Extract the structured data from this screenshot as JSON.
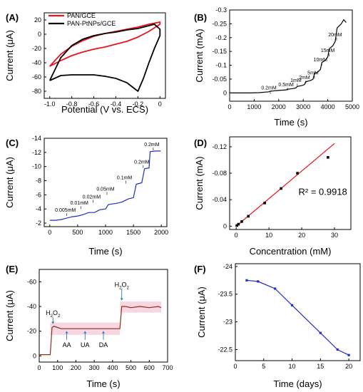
{
  "chart_data": [
    {
      "panel": "(A)",
      "type": "line",
      "xlabel": "Potential (V vs. ECS)",
      "ylabel": "Current (μA)",
      "xlim": [
        -1.05,
        0.05
      ],
      "ylim": [
        -90,
        30
      ],
      "xticks": [
        -1.0,
        -0.8,
        -0.6,
        -0.4,
        -0.2,
        0.0
      ],
      "xtick_labels": [
        "-1.0",
        "-0.8",
        "-0.6",
        "-0.4",
        "-0.2",
        "0"
      ],
      "yticks": [
        -80,
        -60,
        -40,
        -20,
        0,
        20
      ],
      "legend": "top-left",
      "series": [
        {
          "name": "PAN/GCE",
          "color": "#e8141e",
          "x": [
            -1.0,
            -0.9,
            -0.8,
            -0.7,
            -0.6,
            -0.5,
            -0.4,
            -0.3,
            -0.2,
            -0.1,
            0.0,
            0.0,
            -0.1,
            -0.2,
            -0.3,
            -0.4,
            -0.5,
            -0.6,
            -0.7,
            -0.8,
            -0.9,
            -1.0
          ],
          "y": [
            -45,
            -28,
            -17,
            -9,
            -3,
            1,
            4,
            7,
            10,
            14,
            17,
            14,
            4,
            -4,
            -10,
            -14,
            -18,
            -21,
            -25,
            -30,
            -37,
            -45
          ]
        },
        {
          "name": "PAN-PtNPs/GCE",
          "color": "#000000",
          "x": [
            -1.0,
            -0.9,
            -0.8,
            -0.7,
            -0.6,
            -0.5,
            -0.4,
            -0.3,
            -0.2,
            -0.1,
            -0.05,
            0.0,
            0.0,
            -0.05,
            -0.1,
            -0.15,
            -0.2,
            -0.25,
            -0.3,
            -0.4,
            -0.5,
            -0.6,
            -0.7,
            -0.8,
            -0.9,
            -1.0
          ],
          "y": [
            -65,
            -33,
            -16,
            -7,
            -2,
            1,
            3,
            6,
            8,
            12,
            14,
            7,
            -2,
            -20,
            -40,
            -62,
            -80,
            -74,
            -68,
            -62,
            -59,
            -57,
            -57,
            -57,
            -58,
            -65
          ]
        }
      ]
    },
    {
      "panel": "(B)",
      "type": "line",
      "xlabel": "Time (s)",
      "ylabel": "Current (mA)",
      "xlim": [
        0,
        5000
      ],
      "ylim": [
        0.03,
        -0.3
      ],
      "xticks": [
        0,
        1000,
        2000,
        3000,
        4000,
        5000
      ],
      "yticks": [
        0,
        -0.05,
        -0.1,
        -0.15,
        -0.2,
        -0.25,
        -0.3
      ],
      "ytick_labels": [
        "0",
        "-0.05",
        "-0.1",
        "-0.15",
        "-0.2",
        "-0.25",
        "-0.3"
      ],
      "series": [
        {
          "name": "",
          "color": "#000000",
          "x": [
            0,
            800,
            1200,
            1600,
            1650,
            2000,
            2300,
            2350,
            2600,
            2700,
            2750,
            2950,
            3050,
            3100,
            3300,
            3400,
            3460,
            3600,
            3700,
            3760,
            3900,
            4000,
            4060,
            4200,
            4300,
            4380,
            4550,
            4650,
            4750
          ],
          "y": [
            0,
            0,
            -0.001,
            -0.004,
            -0.006,
            -0.009,
            -0.011,
            -0.013,
            -0.016,
            -0.018,
            -0.023,
            -0.027,
            -0.03,
            -0.04,
            -0.045,
            -0.05,
            -0.07,
            -0.076,
            -0.085,
            -0.11,
            -0.118,
            -0.13,
            -0.16,
            -0.17,
            -0.185,
            -0.235,
            -0.25,
            -0.265,
            -0.255
          ]
        }
      ],
      "annotations": [
        {
          "text": "0.2mM",
          "x": 1600,
          "y": -0.012
        },
        {
          "text": "0.5mM",
          "x": 2300,
          "y": -0.024
        },
        {
          "text": "1mM",
          "x": 2700,
          "y": -0.039
        },
        {
          "text": "2mM",
          "x": 3050,
          "y": -0.05
        },
        {
          "text": "5mM",
          "x": 3400,
          "y": -0.067
        },
        {
          "text": "10mM",
          "x": 3700,
          "y": -0.115
        },
        {
          "text": "15mM",
          "x": 4000,
          "y": -0.148
        },
        {
          "text": "20mM",
          "x": 4300,
          "y": -0.205
        }
      ]
    },
    {
      "panel": "(C)",
      "type": "line",
      "xlabel": "Time (s)",
      "ylabel": "Current (μA)",
      "xlim": [
        -100,
        2100
      ],
      "ylim": [
        -1.5,
        -14
      ],
      "xticks": [
        0,
        500,
        1000,
        1500,
        2000
      ],
      "yticks": [
        -2,
        -4,
        -6,
        -8,
        -10,
        -12,
        -14
      ],
      "series": [
        {
          "name": "",
          "color": "#1f2fc8",
          "x": [
            0,
            100,
            200,
            300,
            400,
            500,
            600,
            700,
            800,
            900,
            1000,
            1050,
            1100,
            1200,
            1300,
            1400,
            1500,
            1550,
            1600,
            1650,
            1700,
            1780,
            1800,
            1900,
            1990
          ],
          "y": [
            -2.4,
            -2.4,
            -2.5,
            -2.7,
            -2.9,
            -3.0,
            -3.2,
            -3.5,
            -3.5,
            -3.9,
            -4.0,
            -4.6,
            -4.7,
            -4.8,
            -5.0,
            -5.4,
            -5.6,
            -7.5,
            -7.6,
            -7.7,
            -9.7,
            -9.8,
            -12.1,
            -12.2,
            -12.2
          ]
        }
      ],
      "annotations": [
        {
          "text": "0.005mM",
          "x": 280,
          "y": -3.6
        },
        {
          "text": "0.01mM",
          "x": 530,
          "y": -4.6
        },
        {
          "text": "0.02mM",
          "x": 750,
          "y": -5.5
        },
        {
          "text": "0.05mM",
          "x": 1000,
          "y": -6.6
        },
        {
          "text": "0.1mM",
          "x": 1340,
          "y": -8.2
        },
        {
          "text": "0.2mM",
          "x": 1650,
          "y": -10.4
        },
        {
          "text": "0.2mM",
          "x": 1830,
          "y": -12.9
        }
      ]
    },
    {
      "panel": "(D)",
      "type": "scatter",
      "xlabel": "Concentration (mM)",
      "ylabel": "Current (mA)",
      "xlim": [
        -2,
        35
      ],
      "ylim": [
        0.005,
        -0.135
      ],
      "xticks": [
        0,
        10,
        20,
        30
      ],
      "yticks": [
        0,
        -0.04,
        -0.08,
        -0.12
      ],
      "ytick_labels": [
        "0",
        "-0.04",
        "-0.08",
        "-0.12"
      ],
      "annotation": "R² = 0.9918",
      "fit_line": {
        "x": [
          0,
          30
        ],
        "y": [
          0.0,
          -0.125
        ],
        "color": "#e8141e"
      },
      "series": [
        {
          "name": "",
          "color": "#000000",
          "x": [
            0.2,
            0.7,
            1.7,
            3.7,
            8.7,
            13.7,
            18.7,
            28
          ],
          "y": [
            -0.001,
            -0.003,
            -0.007,
            -0.015,
            -0.035,
            -0.057,
            -0.08,
            -0.104
          ]
        }
      ]
    },
    {
      "panel": "(E)",
      "type": "line",
      "xlabel": "Time (s)",
      "ylabel": "Current (μA)",
      "xlim": [
        0,
        700
      ],
      "ylim": [
        5,
        -70
      ],
      "xticks": [
        0,
        100,
        200,
        300,
        400,
        500,
        600,
        700
      ],
      "yticks": [
        0,
        -20,
        -40,
        -60
      ],
      "series": [
        {
          "name": "",
          "color": "#8b2e1a",
          "x": [
            0,
            60,
            70,
            80,
            100,
            120,
            150,
            200,
            250,
            300,
            350,
            400,
            420,
            440,
            450,
            470,
            500,
            550,
            600,
            650,
            665
          ],
          "y": [
            -1,
            -1,
            -23,
            -24,
            -23,
            -22,
            -22,
            -22,
            -22,
            -22,
            -22,
            -22,
            -22,
            -22,
            -40,
            -40,
            -39,
            -40,
            -39,
            -40,
            -39
          ]
        }
      ],
      "annotations": [
        {
          "text": "H2O2",
          "x": 75
        },
        {
          "text": "AA",
          "x": 150
        },
        {
          "text": "UA",
          "x": 250
        },
        {
          "text": "DA",
          "x": 350
        },
        {
          "text": "H2O2",
          "x": 450
        }
      ]
    },
    {
      "panel": "(F)",
      "type": "line",
      "xlabel": "Time (days)",
      "ylabel": "Current (μA)",
      "xlim": [
        0,
        22
      ],
      "ylim": [
        -22.3,
        -24.05
      ],
      "xticks": [
        0,
        5,
        10,
        15,
        20
      ],
      "yticks": [
        -22.5,
        -23,
        -23.5,
        -24
      ],
      "ytick_labels": [
        "-22.5",
        "-23",
        "-23.5",
        "-24"
      ],
      "series": [
        {
          "name": "",
          "color": "#1f2fc8",
          "x": [
            2,
            4,
            7,
            10,
            15,
            18,
            20
          ],
          "y": [
            -23.75,
            -23.73,
            -23.6,
            -23.3,
            -22.8,
            -22.5,
            -22.4
          ]
        }
      ]
    }
  ]
}
